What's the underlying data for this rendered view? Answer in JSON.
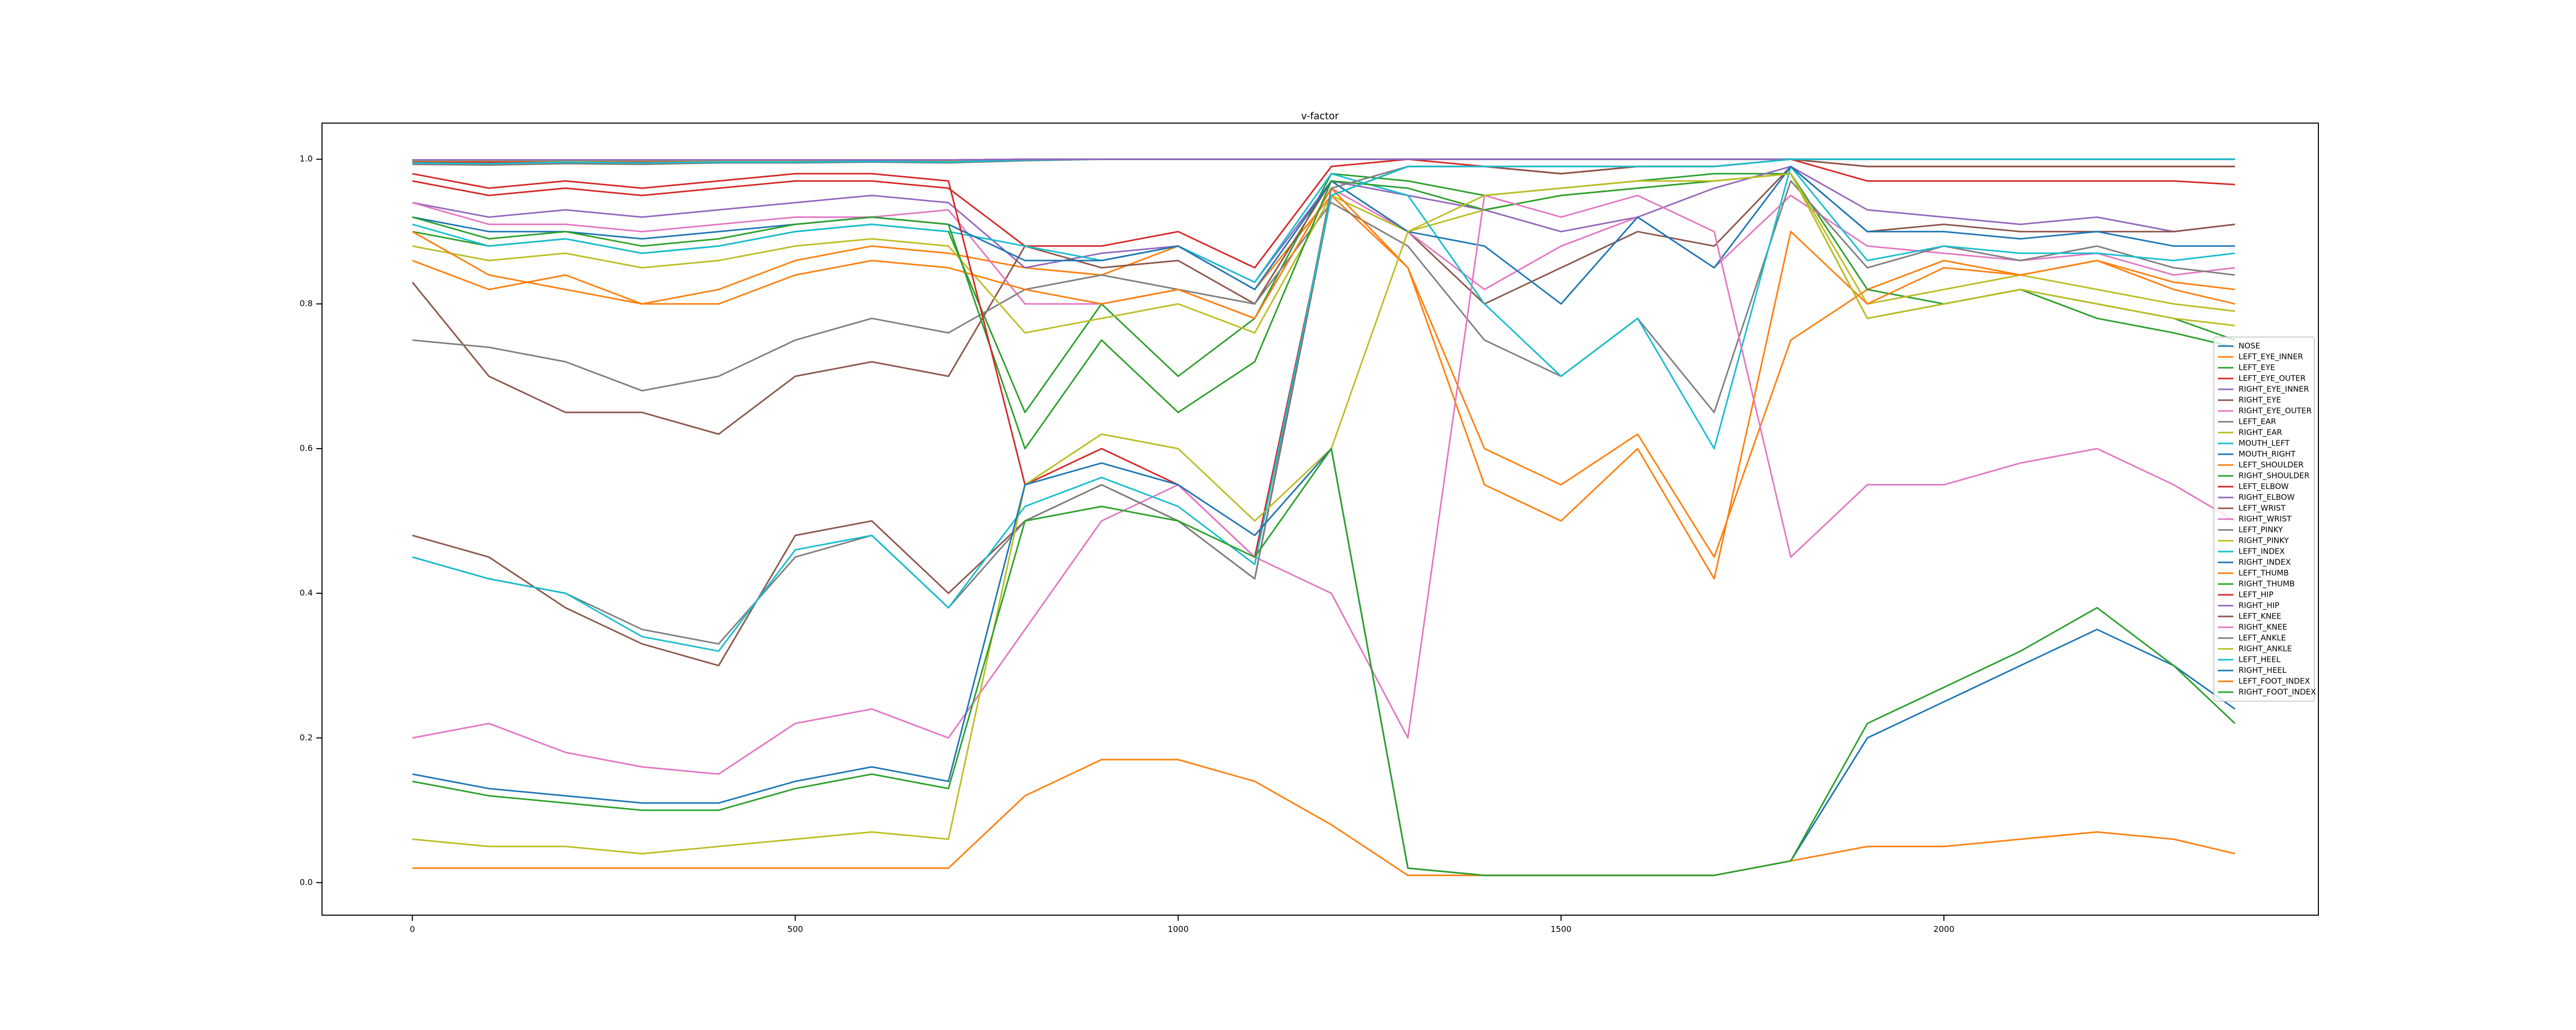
{
  "chart_data": {
    "type": "line",
    "title": "v-factor",
    "x": [
      0,
      100,
      200,
      300,
      400,
      500,
      600,
      700,
      800,
      900,
      1000,
      1100,
      1200,
      1300,
      1400,
      1500,
      1600,
      1700,
      1800,
      1900,
      2000,
      2100,
      2200,
      2300,
      2380
    ],
    "xlim": [
      -118,
      2489
    ],
    "ylim": [
      -0.045,
      1.05
    ],
    "xticks": [
      0,
      500,
      1000,
      1500,
      2000
    ],
    "yticks": [
      {
        "value": 0,
        "label": "0.0"
      },
      0.2,
      0.4,
      0.6,
      0.8,
      {
        "value": 1,
        "label": "1.0"
      }
    ],
    "legend": "center right",
    "series": [
      {
        "name": "NOSE",
        "color": "#1f77b4",
        "values": [
          0.998,
          0.998,
          0.998,
          0.998,
          0.998,
          0.998,
          0.998,
          0.998,
          0.999,
          1.0,
          1.0,
          1.0,
          1.0,
          1.0,
          1.0,
          1.0,
          1.0,
          1.0,
          1.0,
          1.0,
          1.0,
          1.0,
          1.0,
          1.0,
          1.0
        ]
      },
      {
        "name": "LEFT_EYE_INNER",
        "color": "#ff7f0e",
        "values": [
          0.997,
          0.997,
          0.998,
          0.997,
          0.998,
          0.998,
          0.998,
          0.998,
          0.999,
          1.0,
          1.0,
          1.0,
          1.0,
          1.0,
          1.0,
          1.0,
          1.0,
          1.0,
          1.0,
          1.0,
          1.0,
          1.0,
          1.0,
          1.0,
          1.0
        ]
      },
      {
        "name": "LEFT_EYE",
        "color": "#2ca02c",
        "values": [
          0.996,
          0.995,
          0.996,
          0.996,
          0.997,
          0.997,
          0.998,
          0.997,
          0.999,
          1.0,
          1.0,
          1.0,
          1.0,
          1.0,
          1.0,
          1.0,
          1.0,
          1.0,
          1.0,
          1.0,
          1.0,
          1.0,
          1.0,
          1.0,
          1.0
        ]
      },
      {
        "name": "LEFT_EYE_OUTER",
        "color": "#d62728",
        "values": [
          0.996,
          0.996,
          0.997,
          0.996,
          0.997,
          0.997,
          0.998,
          0.997,
          0.999,
          1.0,
          1.0,
          1.0,
          1.0,
          1.0,
          1.0,
          1.0,
          1.0,
          1.0,
          1.0,
          1.0,
          1.0,
          1.0,
          1.0,
          1.0,
          1.0
        ]
      },
      {
        "name": "RIGHT_EYE_INNER",
        "color": "#9467bd",
        "values": [
          0.999,
          0.999,
          0.999,
          0.999,
          0.999,
          0.999,
          0.999,
          0.999,
          1.0,
          1.0,
          1.0,
          1.0,
          1.0,
          1.0,
          1.0,
          1.0,
          1.0,
          1.0,
          1.0,
          1.0,
          1.0,
          1.0,
          1.0,
          1.0,
          1.0
        ]
      },
      {
        "name": "RIGHT_EYE",
        "color": "#8c564b",
        "values": [
          0.999,
          0.999,
          0.999,
          0.999,
          0.999,
          0.999,
          0.999,
          0.999,
          1.0,
          1.0,
          1.0,
          1.0,
          1.0,
          1.0,
          1.0,
          1.0,
          1.0,
          1.0,
          1.0,
          1.0,
          1.0,
          1.0,
          1.0,
          1.0,
          1.0
        ]
      },
      {
        "name": "RIGHT_EYE_OUTER",
        "color": "#e377c2",
        "values": [
          0.998,
          0.998,
          0.999,
          0.998,
          0.999,
          0.999,
          0.999,
          0.999,
          1.0,
          1.0,
          1.0,
          1.0,
          1.0,
          1.0,
          1.0,
          1.0,
          1.0,
          1.0,
          1.0,
          1.0,
          1.0,
          1.0,
          1.0,
          1.0,
          1.0
        ]
      },
      {
        "name": "LEFT_EAR",
        "color": "#7f7f7f",
        "values": [
          0.993,
          0.992,
          0.994,
          0.993,
          0.995,
          0.995,
          0.996,
          0.995,
          0.998,
          1.0,
          1.0,
          1.0,
          1.0,
          1.0,
          1.0,
          1.0,
          1.0,
          1.0,
          1.0,
          1.0,
          1.0,
          1.0,
          1.0,
          1.0,
          1.0
        ]
      },
      {
        "name": "RIGHT_EAR",
        "color": "#bcbd22",
        "values": [
          0.998,
          0.998,
          0.998,
          0.998,
          0.998,
          0.998,
          0.999,
          0.998,
          1.0,
          1.0,
          1.0,
          1.0,
          1.0,
          1.0,
          1.0,
          1.0,
          1.0,
          1.0,
          1.0,
          1.0,
          1.0,
          1.0,
          1.0,
          1.0,
          1.0
        ]
      },
      {
        "name": "MOUTH_LEFT",
        "color": "#17becf",
        "values": [
          0.995,
          0.994,
          0.996,
          0.995,
          0.996,
          0.996,
          0.997,
          0.996,
          0.999,
          1.0,
          1.0,
          1.0,
          1.0,
          1.0,
          1.0,
          1.0,
          1.0,
          1.0,
          1.0,
          1.0,
          1.0,
          1.0,
          1.0,
          1.0,
          1.0
        ]
      },
      {
        "name": "MOUTH_RIGHT",
        "color": "#1f77b4",
        "values": [
          0.999,
          0.999,
          0.999,
          0.999,
          0.999,
          0.999,
          0.999,
          0.999,
          1.0,
          1.0,
          1.0,
          1.0,
          1.0,
          1.0,
          1.0,
          1.0,
          1.0,
          1.0,
          1.0,
          1.0,
          1.0,
          1.0,
          1.0,
          1.0,
          1.0
        ]
      },
      {
        "name": "LEFT_SHOULDER",
        "color": "#ff7f0e",
        "values": [
          0.86,
          0.82,
          0.84,
          0.8,
          0.82,
          0.86,
          0.88,
          0.87,
          0.85,
          0.84,
          0.88,
          0.82,
          0.95,
          0.85,
          0.6,
          0.55,
          0.62,
          0.45,
          0.75,
          0.82,
          0.86,
          0.84,
          0.86,
          0.83,
          0.82
        ]
      },
      {
        "name": "RIGHT_SHOULDER",
        "color": "#2ca02c",
        "values": [
          0.9,
          0.88,
          0.89,
          0.87,
          0.88,
          0.9,
          0.91,
          0.9,
          0.65,
          0.8,
          0.7,
          0.78,
          0.98,
          0.97,
          0.95,
          0.96,
          0.97,
          0.98,
          0.98,
          0.82,
          0.8,
          0.82,
          0.78,
          0.76,
          0.74
        ]
      },
      {
        "name": "LEFT_ELBOW",
        "color": "#d62728",
        "values": [
          0.97,
          0.95,
          0.96,
          0.95,
          0.96,
          0.97,
          0.97,
          0.96,
          0.88,
          0.88,
          0.9,
          0.85,
          0.99,
          1.0,
          0.99,
          0.98,
          0.99,
          0.99,
          1.0,
          0.97,
          0.97,
          0.97,
          0.97,
          0.97,
          0.965
        ]
      },
      {
        "name": "RIGHT_ELBOW",
        "color": "#9467bd",
        "values": [
          0.94,
          0.92,
          0.93,
          0.92,
          0.93,
          0.94,
          0.95,
          0.94,
          0.85,
          0.87,
          0.88,
          0.83,
          0.97,
          0.95,
          0.93,
          0.9,
          0.92,
          0.96,
          0.99,
          0.93,
          0.92,
          0.91,
          0.92,
          0.9,
          0.91
        ]
      },
      {
        "name": "LEFT_WRIST",
        "color": "#8c564b",
        "values": [
          0.83,
          0.7,
          0.65,
          0.65,
          0.62,
          0.7,
          0.72,
          0.7,
          0.88,
          0.85,
          0.86,
          0.8,
          0.97,
          0.9,
          0.8,
          0.85,
          0.9,
          0.88,
          0.99,
          0.9,
          0.91,
          0.9,
          0.9,
          0.9,
          0.91
        ]
      },
      {
        "name": "RIGHT_WRIST",
        "color": "#e377c2",
        "values": [
          0.94,
          0.91,
          0.91,
          0.9,
          0.91,
          0.92,
          0.92,
          0.93,
          0.8,
          0.8,
          0.82,
          0.78,
          0.96,
          0.9,
          0.82,
          0.88,
          0.92,
          0.85,
          0.95,
          0.88,
          0.87,
          0.86,
          0.87,
          0.84,
          0.85
        ]
      },
      {
        "name": "LEFT_PINKY",
        "color": "#7f7f7f",
        "values": [
          0.75,
          0.74,
          0.72,
          0.68,
          0.7,
          0.75,
          0.78,
          0.76,
          0.82,
          0.84,
          0.82,
          0.8,
          0.94,
          0.88,
          0.75,
          0.7,
          0.78,
          0.65,
          0.97,
          0.85,
          0.88,
          0.86,
          0.88,
          0.85,
          0.84
        ]
      },
      {
        "name": "RIGHT_PINKY",
        "color": "#bcbd22",
        "values": [
          0.88,
          0.86,
          0.87,
          0.85,
          0.86,
          0.88,
          0.89,
          0.88,
          0.76,
          0.78,
          0.8,
          0.76,
          0.95,
          0.9,
          0.93,
          0.95,
          0.96,
          0.97,
          0.98,
          0.8,
          0.82,
          0.84,
          0.82,
          0.8,
          0.79
        ]
      },
      {
        "name": "LEFT_INDEX",
        "color": "#17becf",
        "values": [
          0.91,
          0.88,
          0.89,
          0.87,
          0.88,
          0.9,
          0.91,
          0.9,
          0.88,
          0.86,
          0.88,
          0.83,
          0.98,
          0.95,
          0.8,
          0.7,
          0.78,
          0.6,
          0.99,
          0.86,
          0.88,
          0.87,
          0.87,
          0.86,
          0.87
        ]
      },
      {
        "name": "RIGHT_INDEX",
        "color": "#1f77b4",
        "values": [
          0.92,
          0.9,
          0.9,
          0.89,
          0.9,
          0.91,
          0.92,
          0.91,
          0.86,
          0.86,
          0.88,
          0.82,
          0.97,
          0.9,
          0.88,
          0.8,
          0.92,
          0.85,
          0.99,
          0.9,
          0.9,
          0.89,
          0.9,
          0.88,
          0.88
        ]
      },
      {
        "name": "LEFT_THUMB",
        "color": "#ff7f0e",
        "values": [
          0.9,
          0.84,
          0.82,
          0.8,
          0.8,
          0.84,
          0.86,
          0.85,
          0.82,
          0.8,
          0.82,
          0.78,
          0.96,
          0.85,
          0.55,
          0.5,
          0.6,
          0.42,
          0.9,
          0.8,
          0.85,
          0.84,
          0.86,
          0.82,
          0.8
        ]
      },
      {
        "name": "RIGHT_THUMB",
        "color": "#2ca02c",
        "values": [
          0.92,
          0.89,
          0.9,
          0.88,
          0.89,
          0.91,
          0.92,
          0.91,
          0.6,
          0.75,
          0.65,
          0.72,
          0.97,
          0.96,
          0.93,
          0.95,
          0.96,
          0.97,
          0.98,
          0.78,
          0.8,
          0.82,
          0.8,
          0.78,
          0.75
        ]
      },
      {
        "name": "LEFT_HIP",
        "color": "#d62728",
        "values": [
          0.98,
          0.96,
          0.97,
          0.96,
          0.97,
          0.98,
          0.98,
          0.97,
          0.55,
          0.6,
          0.55,
          0.45,
          0.95,
          0.99,
          0.99,
          0.98,
          0.99,
          0.99,
          1.0,
          0.99,
          0.99,
          0.99,
          0.99,
          0.99,
          0.99
        ]
      },
      {
        "name": "RIGHT_HIP",
        "color": "#9467bd",
        "values": [
          0.999,
          0.999,
          0.999,
          0.999,
          0.999,
          0.999,
          0.999,
          0.999,
          1.0,
          1.0,
          1.0,
          1.0,
          1.0,
          1.0,
          1.0,
          1.0,
          1.0,
          1.0,
          1.0,
          1.0,
          1.0,
          1.0,
          1.0,
          1.0,
          1.0
        ]
      },
      {
        "name": "LEFT_KNEE",
        "color": "#8c564b",
        "values": [
          0.48,
          0.45,
          0.38,
          0.33,
          0.3,
          0.48,
          0.5,
          0.4,
          0.5,
          0.55,
          0.5,
          0.42,
          0.95,
          0.99,
          0.99,
          0.98,
          0.99,
          0.99,
          1.0,
          0.99,
          0.99,
          0.99,
          0.99,
          0.99,
          0.99
        ]
      },
      {
        "name": "RIGHT_KNEE",
        "color": "#e377c2",
        "values": [
          0.2,
          0.22,
          0.18,
          0.16,
          0.15,
          0.22,
          0.24,
          0.2,
          0.35,
          0.5,
          0.55,
          0.45,
          0.4,
          0.2,
          0.95,
          0.92,
          0.95,
          0.9,
          0.45,
          0.55,
          0.55,
          0.58,
          0.6,
          0.55,
          0.5
        ]
      },
      {
        "name": "LEFT_ANKLE",
        "color": "#7f7f7f",
        "values": [
          0.45,
          0.42,
          0.4,
          0.35,
          0.33,
          0.45,
          0.48,
          0.38,
          0.5,
          0.55,
          0.5,
          0.42,
          0.96,
          0.99,
          0.99,
          0.99,
          0.99,
          0.99,
          1.0,
          1.0,
          1.0,
          1.0,
          1.0,
          1.0,
          1.0
        ]
      },
      {
        "name": "RIGHT_ANKLE",
        "color": "#bcbd22",
        "values": [
          0.06,
          0.05,
          0.05,
          0.04,
          0.05,
          0.06,
          0.07,
          0.06,
          0.55,
          0.62,
          0.6,
          0.5,
          0.6,
          0.9,
          0.95,
          0.96,
          0.97,
          0.97,
          0.98,
          0.78,
          0.8,
          0.82,
          0.8,
          0.78,
          0.77
        ]
      },
      {
        "name": "LEFT_HEEL",
        "color": "#17becf",
        "values": [
          0.45,
          0.42,
          0.4,
          0.34,
          0.32,
          0.46,
          0.48,
          0.38,
          0.52,
          0.56,
          0.52,
          0.44,
          0.95,
          0.99,
          0.99,
          0.99,
          0.99,
          0.99,
          1.0,
          1.0,
          1.0,
          1.0,
          1.0,
          1.0,
          1.0
        ]
      },
      {
        "name": "RIGHT_HEEL",
        "color": "#1f77b4",
        "values": [
          0.15,
          0.13,
          0.12,
          0.11,
          0.11,
          0.14,
          0.16,
          0.14,
          0.55,
          0.58,
          0.55,
          0.48,
          0.6,
          0.02,
          0.01,
          0.01,
          0.01,
          0.01,
          0.03,
          0.2,
          0.25,
          0.3,
          0.35,
          0.3,
          0.24
        ]
      },
      {
        "name": "LEFT_FOOT_INDEX",
        "color": "#ff7f0e",
        "values": [
          0.02,
          0.02,
          0.02,
          0.02,
          0.02,
          0.02,
          0.02,
          0.02,
          0.12,
          0.17,
          0.17,
          0.14,
          0.08,
          0.01,
          0.01,
          0.01,
          0.01,
          0.01,
          0.03,
          0.05,
          0.05,
          0.06,
          0.07,
          0.06,
          0.04
        ]
      },
      {
        "name": "RIGHT_FOOT_INDEX",
        "color": "#2ca02c",
        "values": [
          0.14,
          0.12,
          0.11,
          0.1,
          0.1,
          0.13,
          0.15,
          0.13,
          0.5,
          0.52,
          0.5,
          0.45,
          0.6,
          0.02,
          0.01,
          0.01,
          0.01,
          0.01,
          0.03,
          0.22,
          0.27,
          0.32,
          0.38,
          0.3,
          0.22
        ]
      }
    ]
  }
}
